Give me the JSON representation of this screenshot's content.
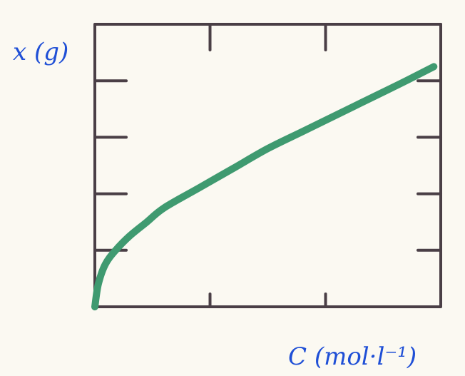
{
  "chart_data": {
    "type": "line",
    "title": "",
    "xlabel": "C (mol·l⁻¹)",
    "ylabel": "x (g)",
    "xlim": [
      0,
      1
    ],
    "ylim": [
      0,
      1
    ],
    "grid": false,
    "legend": "none",
    "x_ticks_bottom": [
      0.333,
      0.667
    ],
    "x_ticks_top": [
      0.333,
      0.667,
      1.0
    ],
    "y_ticks_left": [
      0.2,
      0.4,
      0.6,
      0.8
    ],
    "y_ticks_right": [
      0.2,
      0.4,
      0.6,
      0.8
    ],
    "series": [
      {
        "color": "#3f9a70",
        "x": [
          0.0,
          0.01,
          0.03,
          0.06,
          0.1,
          0.15,
          0.2,
          0.3,
          0.4,
          0.5,
          0.6,
          0.7,
          0.8,
          0.9,
          0.98
        ],
        "y": [
          0.0,
          0.08,
          0.15,
          0.2,
          0.25,
          0.3,
          0.35,
          0.42,
          0.49,
          0.56,
          0.62,
          0.68,
          0.74,
          0.8,
          0.85
        ]
      }
    ],
    "colors": {
      "frame": "#4a3f46",
      "curve": "#3f9a70",
      "labels": "#1f4fd6"
    }
  }
}
